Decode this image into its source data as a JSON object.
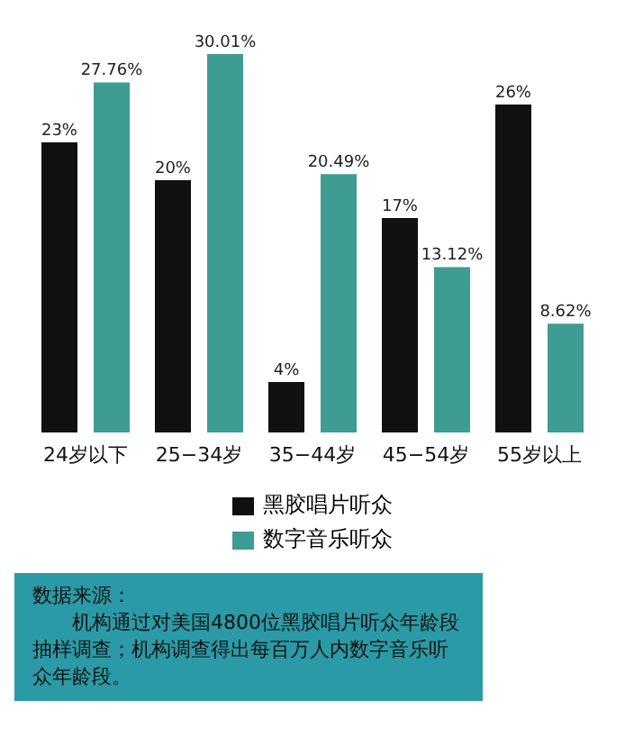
{
  "chart_data": {
    "type": "bar",
    "categories": [
      "24岁以下",
      "25−34岁",
      "35−44岁",
      "45−54岁",
      "55岁以上"
    ],
    "series": [
      {
        "name": "黑胶唱片听众",
        "color": "#111111",
        "values": [
          23,
          20,
          4,
          17,
          26
        ],
        "value_labels": [
          "23%",
          "20%",
          "4%",
          "17%",
          "26%"
        ]
      },
      {
        "name": "数字音乐听众",
        "color": "#3f9c92",
        "values": [
          27.76,
          30.01,
          20.49,
          13.12,
          8.62
        ],
        "value_labels": [
          "27.76%",
          "30.01%",
          "20.49%",
          "13.12%",
          "8.62%"
        ]
      }
    ],
    "legend": "bottom",
    "annotations": [
      "数据来源：",
      "机构通过对美国4800位黑胶唱片听众年龄段抽样调查；机构调查得出每百万人内数字音乐听众年龄段。"
    ]
  }
}
